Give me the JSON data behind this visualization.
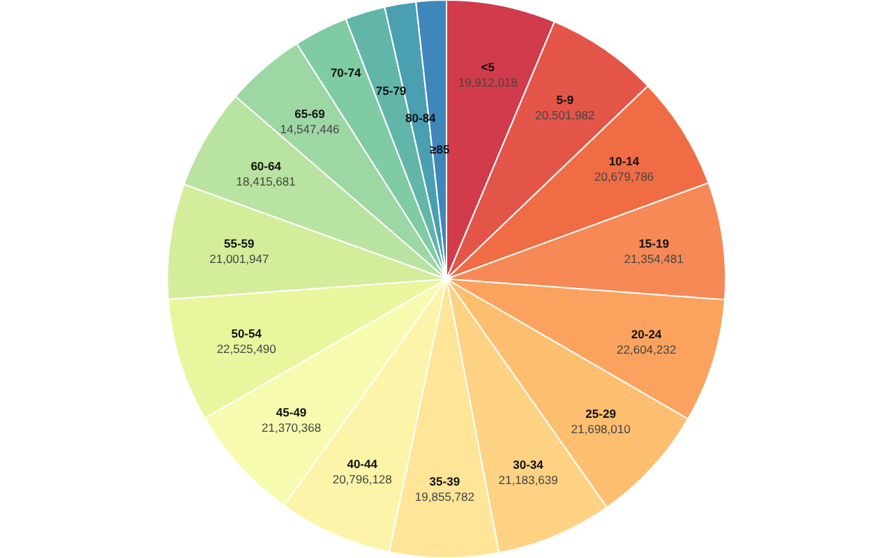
{
  "chart_data": {
    "type": "pie",
    "categories": [
      "<5",
      "5-9",
      "10-14",
      "15-19",
      "20-24",
      "25-29",
      "30-34",
      "35-39",
      "40-44",
      "45-49",
      "50-54",
      "55-59",
      "60-64",
      "65-69",
      "70-74",
      "75-79",
      "80-84",
      "≥85"
    ],
    "values": [
      19912018,
      20501982,
      20679786,
      21354481,
      22604232,
      21698010,
      21183639,
      19855782,
      20796128,
      21370368,
      22525490,
      21001947,
      18415681,
      14547446,
      9900000,
      7300000,
      5700000,
      5500000
    ],
    "value_labels": [
      "19,912,018",
      "20,501,982",
      "20,679,786",
      "21,354,481",
      "22,604,232",
      "21,698,010",
      "21,183,639",
      "19,855,782",
      "20,796,128",
      "21,370,368",
      "22,525,490",
      "21,001,947",
      "18,415,681",
      "14,547,446",
      null,
      null,
      null,
      null
    ],
    "colors": [
      "#d13b4b",
      "#e35549",
      "#f06c45",
      "#f68955",
      "#fba35e",
      "#fdbe70",
      "#fdd283",
      "#fee597",
      "#fbf4a9",
      "#f6fbb0",
      "#e9f69d",
      "#d3ed9b",
      "#b9e3a0",
      "#9dd7a4",
      "#7fcba4",
      "#62b6a9",
      "#4a9fb1",
      "#3f86bb"
    ]
  }
}
